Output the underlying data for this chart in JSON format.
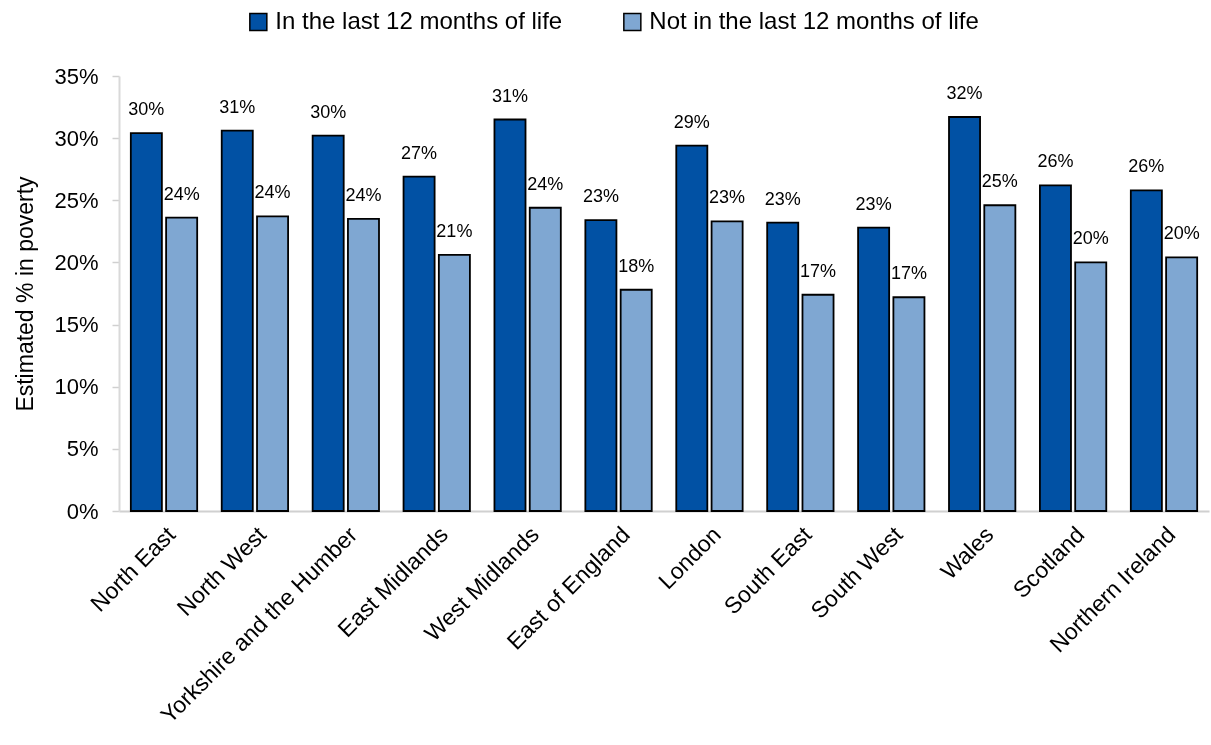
{
  "chart_data": {
    "type": "bar",
    "categories": [
      "North East",
      "North West",
      "Yorkshire and the Humber",
      "East Midlands",
      "West Midlands",
      "East of England",
      "London",
      "South East",
      "South West",
      "Wales",
      "Scotland",
      "Northern Ireland"
    ],
    "series": [
      {
        "name": "In the last 12 months of life",
        "color": "#0151a4",
        "values": [
          30.4,
          30.6,
          30.2,
          26.9,
          31.5,
          23.4,
          29.4,
          23.2,
          22.8,
          31.7,
          26.2,
          25.8
        ],
        "value_labels": [
          "30%",
          "31%",
          "30%",
          "27%",
          "31%",
          "23%",
          "29%",
          "23%",
          "23%",
          "32%",
          "26%",
          "26%"
        ]
      },
      {
        "name": "Not in the last 12 months of life",
        "color": "#7fa7d2",
        "values": [
          23.6,
          23.7,
          23.5,
          20.6,
          24.4,
          17.8,
          23.3,
          17.4,
          17.2,
          24.6,
          20.0,
          20.4
        ],
        "value_labels": [
          "24%",
          "24%",
          "24%",
          "21%",
          "24%",
          "18%",
          "23%",
          "17%",
          "17%",
          "25%",
          "20%",
          "20%"
        ]
      }
    ],
    "ylabel": "Estimated % in poverty",
    "ylim": [
      0,
      35
    ],
    "yticks": [
      {
        "value": 0,
        "label": "0%"
      },
      {
        "value": 5,
        "label": "5%"
      },
      {
        "value": 10,
        "label": "10%"
      },
      {
        "value": 15,
        "label": "15%"
      },
      {
        "value": 20,
        "label": "20%"
      },
      {
        "value": 25,
        "label": "25%"
      },
      {
        "value": 30,
        "label": "30%"
      },
      {
        "value": 35,
        "label": "35%"
      }
    ],
    "grid": false,
    "legend": "top"
  }
}
